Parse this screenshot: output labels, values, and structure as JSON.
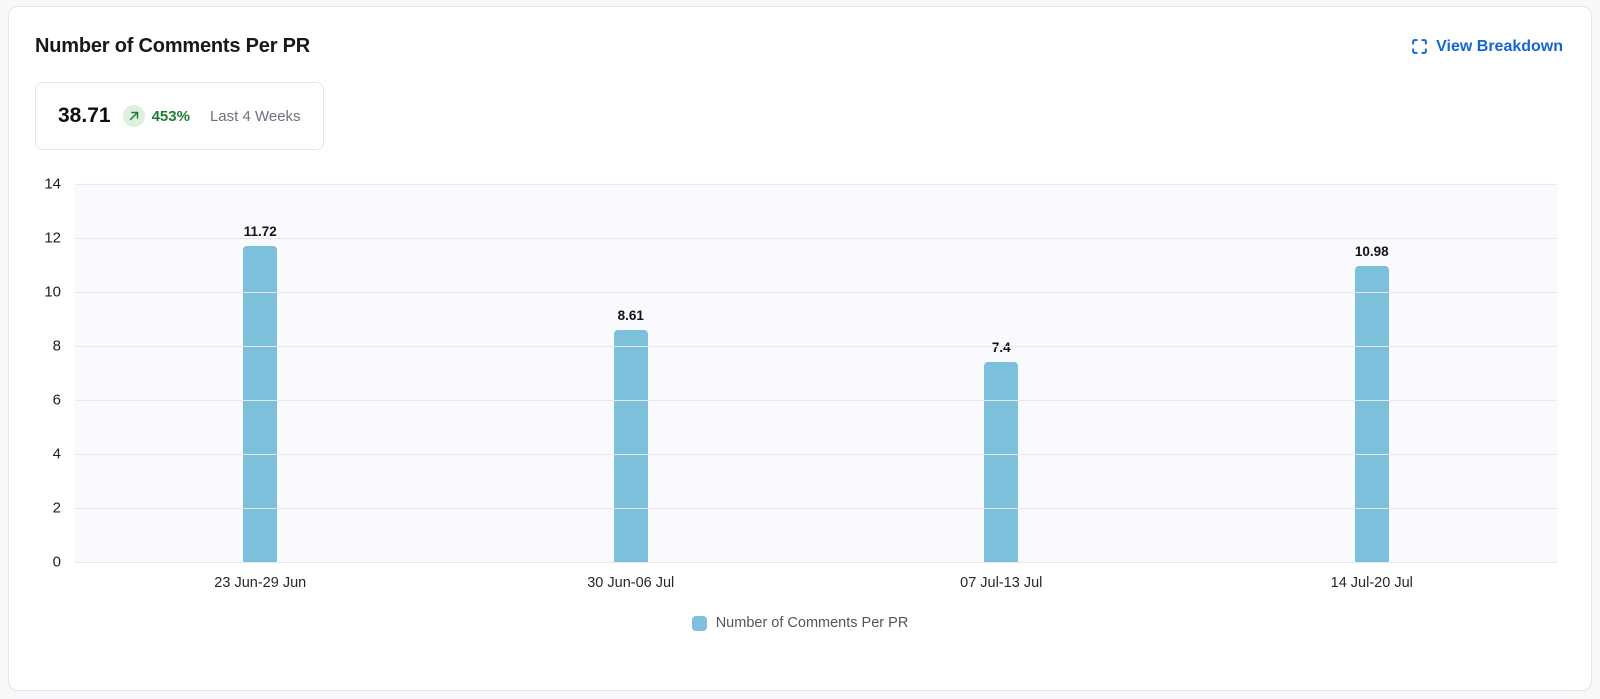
{
  "page": {
    "background": "#f7f8fa"
  },
  "header": {
    "title": "Number of Comments Per PR",
    "view_breakdown_label": "View Breakdown"
  },
  "stat": {
    "value": "38.71",
    "change_percent": "453%",
    "period": "Last 4 Weeks",
    "trend_direction": "up"
  },
  "colors": {
    "bar": "#7CC0DC",
    "link_blue": "#1566D0",
    "positive_green": "#1E7E34",
    "positive_badge_bg": "#DDF0DD",
    "plot_background": "#F9FAFD",
    "gridline": "#E7E9EE"
  },
  "chart_data": {
    "type": "bar",
    "title": "Number of Comments Per PR",
    "categories": [
      "23 Jun-29 Jun",
      "30 Jun-06 Jul",
      "07 Jul-13 Jul",
      "14 Jul-20 Jul"
    ],
    "values": [
      11.72,
      8.61,
      7.4,
      10.98
    ],
    "value_labels": [
      "11.72",
      "8.61",
      "7.4",
      "10.98"
    ],
    "xlabel": "",
    "ylabel": "",
    "ylim": [
      0,
      14
    ],
    "yticks": [
      0,
      2,
      4,
      6,
      8,
      10,
      12,
      14
    ],
    "grid": true,
    "legend": [
      {
        "label": "Number of Comments Per PR",
        "color": "#7CC0DC"
      }
    ],
    "legend_position": "bottom"
  }
}
